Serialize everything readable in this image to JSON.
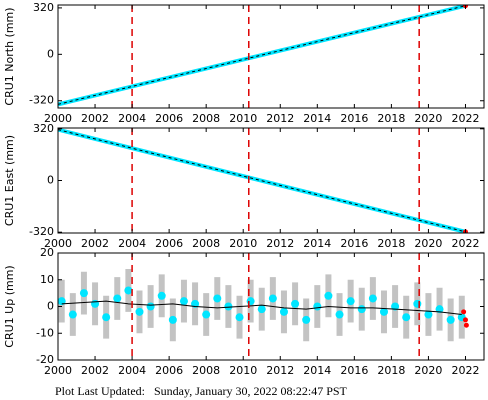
{
  "chart_data": [
    {
      "type": "line",
      "ylabel": "CRU1 North (mm)",
      "xlim": [
        2000,
        2023
      ],
      "ylim": [
        -370,
        340
      ],
      "xticks": [
        2000,
        2002,
        2004,
        2006,
        2008,
        2010,
        2012,
        2014,
        2016,
        2018,
        2020,
        2022
      ],
      "yticks": [
        -320,
        0,
        320
      ],
      "vlines": [
        2004,
        2010.3,
        2019.5
      ],
      "vline_color": "#dd0000",
      "series": [
        {
          "style": "line",
          "color": "#00e5ff",
          "x": [
            2000,
            2022
          ],
          "values": [
            -345,
            335
          ]
        },
        {
          "style": "dashed",
          "color": "#000000",
          "x": [
            2000,
            2022
          ],
          "values": [
            -345,
            335
          ]
        },
        {
          "style": "points",
          "color": "#ff0000",
          "x": [
            2022
          ],
          "values": [
            335
          ]
        }
      ]
    },
    {
      "type": "line",
      "ylabel": "CRU1 East (mm)",
      "xlim": [
        2000,
        2023
      ],
      "ylim": [
        -325,
        325
      ],
      "xticks": [
        2000,
        2002,
        2004,
        2006,
        2008,
        2010,
        2012,
        2014,
        2016,
        2018,
        2020,
        2022
      ],
      "yticks": [
        -320,
        0,
        320
      ],
      "vlines": [
        2004,
        2010.3,
        2019.5
      ],
      "vline_color": "#dd0000",
      "series": [
        {
          "style": "line",
          "color": "#00e5ff",
          "x": [
            2000,
            2022
          ],
          "values": [
            315,
            -318
          ]
        },
        {
          "style": "dashed",
          "color": "#000000",
          "x": [
            2000,
            2022
          ],
          "values": [
            315,
            -318
          ]
        },
        {
          "style": "points",
          "color": "#ff0000",
          "x": [
            2022
          ],
          "values": [
            -318
          ]
        }
      ]
    },
    {
      "type": "scatter",
      "ylabel": "CRU1 Up (mm)",
      "xlim": [
        2000,
        2023
      ],
      "ylim": [
        -20,
        20
      ],
      "xticks": [
        2000,
        2002,
        2004,
        2006,
        2008,
        2010,
        2012,
        2014,
        2016,
        2018,
        2020,
        2022
      ],
      "yticks": [
        -20,
        -10,
        0,
        10,
        20
      ],
      "vlines": [
        2004,
        2010.3,
        2019.5
      ],
      "vline_color": "#dd0000",
      "series": [
        {
          "style": "points",
          "color": "#00e5ff",
          "error_color": "#aaaaaa",
          "x": [
            2000.2,
            2000.8,
            2001.4,
            2002,
            2002.6,
            2003.2,
            2003.8,
            2004.4,
            2005,
            2005.6,
            2006.2,
            2006.8,
            2007.4,
            2008,
            2008.6,
            2009.2,
            2009.8,
            2010.4,
            2011,
            2011.6,
            2012.2,
            2012.8,
            2013.4,
            2014,
            2014.6,
            2015.2,
            2015.8,
            2016.4,
            2017,
            2017.6,
            2018.2,
            2018.8,
            2019.4,
            2020,
            2020.6,
            2021.2,
            2021.8
          ],
          "values": [
            2,
            -3,
            5,
            1,
            -4,
            3,
            6,
            -2,
            0,
            4,
            -5,
            2,
            1,
            -3,
            3,
            0,
            -4,
            2,
            -1,
            3,
            -2,
            1,
            -5,
            0,
            4,
            -3,
            2,
            -1,
            3,
            -2,
            0,
            -4,
            1,
            -3,
            -1,
            -5,
            -4
          ],
          "errors": [
            8,
            8,
            8,
            8,
            8,
            8,
            8,
            8,
            8,
            8,
            8,
            8,
            8,
            8,
            8,
            8,
            8,
            8,
            8,
            8,
            8,
            8,
            8,
            8,
            8,
            8,
            8,
            8,
            8,
            8,
            8,
            8,
            8,
            8,
            8,
            8,
            8
          ]
        },
        {
          "style": "line",
          "color": "#000000",
          "x": [
            2000.2,
            2001.4,
            2002.6,
            2003.8,
            2005,
            2006.2,
            2007.4,
            2008.6,
            2009.8,
            2011,
            2012.2,
            2013.4,
            2014.6,
            2015.8,
            2017,
            2018.2,
            2019.4,
            2020.6,
            2021.8
          ],
          "values": [
            1,
            1.5,
            2,
            1,
            0.5,
            1,
            0,
            -0.5,
            0,
            0.5,
            -0.5,
            -1,
            0,
            -0.5,
            -0.5,
            -1,
            -1.5,
            -2,
            -3
          ]
        },
        {
          "style": "points",
          "color": "#ff0000",
          "x": [
            2021.9,
            2022,
            2022.05
          ],
          "values": [
            -2,
            -5,
            -7
          ]
        }
      ]
    }
  ],
  "footer": "Plot Last Updated:   Sunday, January 30, 2022 08:22:47 PST"
}
